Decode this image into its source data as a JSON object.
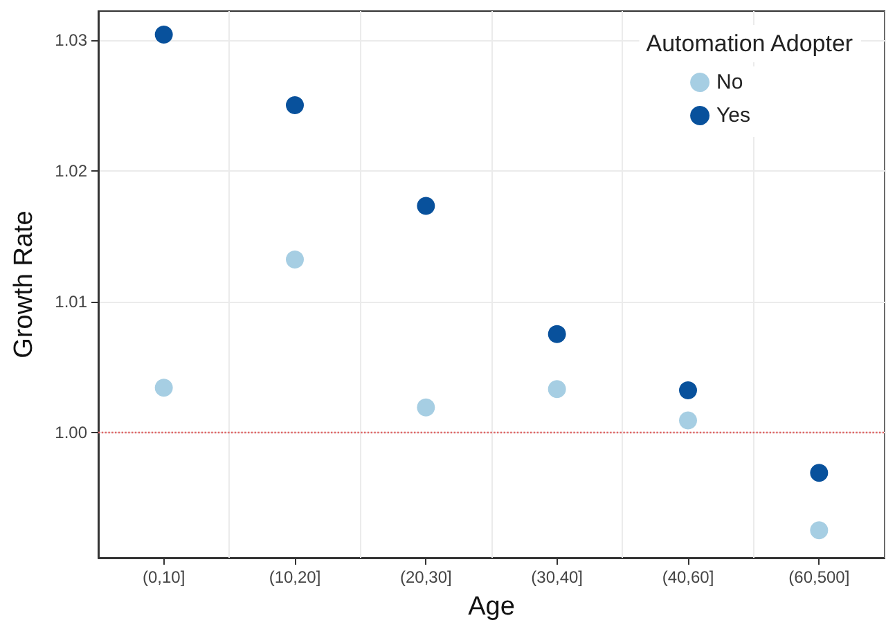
{
  "chart_data": {
    "type": "scatter",
    "xlabel": "Age",
    "ylabel": "Growth Rate",
    "legend_title": "Automation Adopter",
    "categories": [
      "(0,10]",
      "(10,20]",
      "(20,30]",
      "(30,40]",
      "(40,60]",
      "(60,500]"
    ],
    "series": [
      {
        "name": "No",
        "color": "#a6cee3",
        "values": [
          1.0034,
          1.0132,
          1.0019,
          1.0033,
          1.0009,
          0.9925
        ]
      },
      {
        "name": "Yes",
        "color": "#08519c",
        "values": [
          1.0304,
          1.025,
          1.0173,
          1.0075,
          1.0032,
          0.9969
        ]
      }
    ],
    "ylim": [
      0.9904,
      1.0322
    ],
    "yticks": [
      {
        "value": 1.0,
        "label": "1.00"
      },
      {
        "value": 1.01,
        "label": "1.01"
      },
      {
        "value": 1.02,
        "label": "1.02"
      },
      {
        "value": 1.03,
        "label": "1.03"
      }
    ],
    "ref_lines": [
      {
        "axis": "y",
        "value": 1.0,
        "color": "#e06666",
        "line_style": "dotted"
      }
    ],
    "grid": true,
    "legend": "top right",
    "marker": "circle"
  }
}
